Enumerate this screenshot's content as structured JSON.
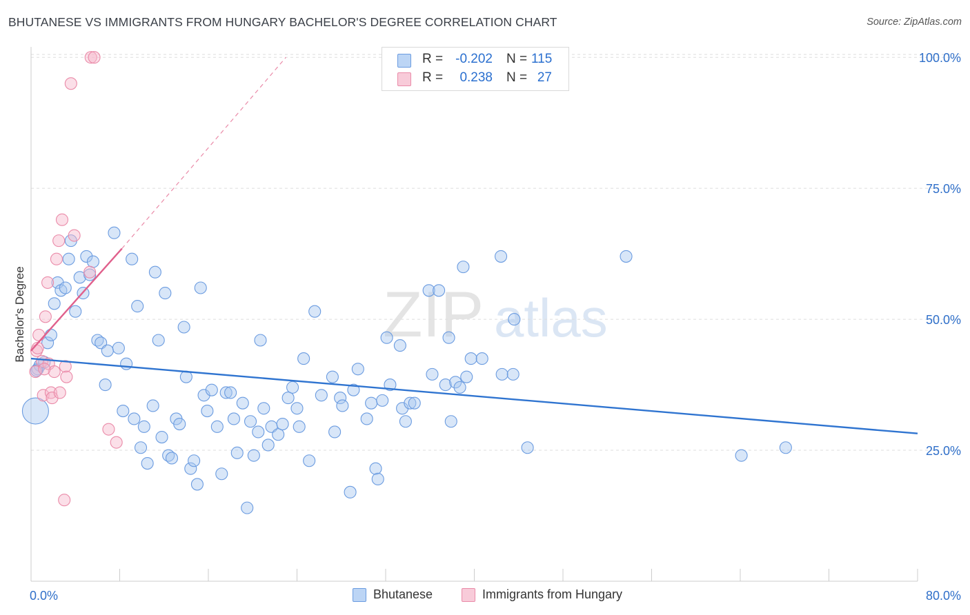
{
  "title": "BHUTANESE VS IMMIGRANTS FROM HUNGARY BACHELOR'S DEGREE CORRELATION CHART",
  "source": "Source: ZipAtlas.com",
  "watermark": {
    "zip": "ZIP",
    "atlas": "atlas"
  },
  "legend": {
    "r_label": "R =",
    "n_label": "N =",
    "rows": [
      {
        "name": "Bhutanese",
        "r": "-0.202",
        "n": "115"
      },
      {
        "name": "Immigrants from Hungary",
        "r": "0.238",
        "n": "27"
      }
    ]
  },
  "colors": {
    "blue_fill": "#a9c8f0",
    "blue_stroke": "#6a9be0",
    "blue_line": "#2f74d0",
    "pink_fill": "#f6b9cc",
    "pink_stroke": "#ea8aa8",
    "pink_line": "#e0608c",
    "axis_text": "#2f6fc9",
    "grid": "#dddddd"
  },
  "chart_data": {
    "type": "scatter",
    "title": "BHUTANESE VS IMMIGRANTS FROM HUNGARY BACHELOR'S DEGREE CORRELATION CHART",
    "xlabel": "",
    "ylabel": "Bachelor's Degree",
    "xlim": [
      0,
      80
    ],
    "ylim": [
      0,
      102
    ],
    "x_tick_labels": [
      "0.0%",
      "80.0%"
    ],
    "y_ticks": [
      25,
      50,
      75,
      100
    ],
    "y_tick_labels": [
      "25.0%",
      "50.0%",
      "75.0%",
      "100.0%"
    ],
    "grid": true,
    "series": [
      {
        "name": "Bhutanese",
        "r": -0.202,
        "n": 115,
        "trend": {
          "x": [
            0,
            80
          ],
          "y": [
            42.5,
            28.2
          ]
        },
        "points": [
          [
            0.6,
            40.5
          ],
          [
            0.8,
            41.2
          ],
          [
            1.2,
            41.8
          ],
          [
            1.5,
            45.5
          ],
          [
            1.8,
            47
          ],
          [
            2.1,
            53
          ],
          [
            2.4,
            57
          ],
          [
            2.7,
            55.5
          ],
          [
            3.1,
            56
          ],
          [
            3.4,
            61.5
          ],
          [
            3.6,
            65
          ],
          [
            4,
            51.5
          ],
          [
            4.4,
            58
          ],
          [
            4.7,
            55
          ],
          [
            5,
            62
          ],
          [
            5.3,
            58.5
          ],
          [
            5.6,
            61
          ],
          [
            6,
            46
          ],
          [
            6.3,
            45.5
          ],
          [
            6.7,
            37.5
          ],
          [
            6.9,
            44
          ],
          [
            7.5,
            66.5
          ],
          [
            7.9,
            44.5
          ],
          [
            8.3,
            32.5
          ],
          [
            8.6,
            41.5
          ],
          [
            9.1,
            61.5
          ],
          [
            9.3,
            31
          ],
          [
            9.6,
            52.5
          ],
          [
            9.9,
            25.5
          ],
          [
            10.2,
            29.5
          ],
          [
            10.5,
            22.5
          ],
          [
            11,
            33.5
          ],
          [
            11.2,
            59
          ],
          [
            11.5,
            46
          ],
          [
            11.8,
            27.5
          ],
          [
            12.1,
            55
          ],
          [
            12.4,
            24
          ],
          [
            12.7,
            23.5
          ],
          [
            13.1,
            31
          ],
          [
            13.4,
            30
          ],
          [
            13.8,
            48.5
          ],
          [
            14,
            39
          ],
          [
            14.4,
            21.5
          ],
          [
            14.7,
            23
          ],
          [
            15,
            18.5
          ],
          [
            15.3,
            56
          ],
          [
            15.6,
            35.5
          ],
          [
            15.9,
            32.5
          ],
          [
            16.3,
            36.5
          ],
          [
            16.8,
            29.5
          ],
          [
            17.2,
            20.5
          ],
          [
            17.6,
            36
          ],
          [
            18,
            36
          ],
          [
            18.3,
            31
          ],
          [
            18.6,
            24.5
          ],
          [
            19.1,
            34
          ],
          [
            19.5,
            14
          ],
          [
            19.8,
            30.5
          ],
          [
            20.1,
            24
          ],
          [
            20.5,
            28.5
          ],
          [
            20.7,
            46
          ],
          [
            21,
            33
          ],
          [
            21.4,
            26
          ],
          [
            21.7,
            29.5
          ],
          [
            22.3,
            28
          ],
          [
            22.7,
            30
          ],
          [
            23.2,
            35
          ],
          [
            23.6,
            37
          ],
          [
            24,
            33
          ],
          [
            24.2,
            29.5
          ],
          [
            24.6,
            42.5
          ],
          [
            25.1,
            23
          ],
          [
            25.6,
            51.5
          ],
          [
            26.2,
            35.5
          ],
          [
            27.2,
            39
          ],
          [
            27.4,
            28.5
          ],
          [
            27.9,
            35
          ],
          [
            28.1,
            33.5
          ],
          [
            28.8,
            17
          ],
          [
            29.1,
            36.5
          ],
          [
            29.5,
            40.5
          ],
          [
            30.3,
            31
          ],
          [
            30.7,
            34
          ],
          [
            31.1,
            21.5
          ],
          [
            31.3,
            19.5
          ],
          [
            31.7,
            34.5
          ],
          [
            32.1,
            46.5
          ],
          [
            32.4,
            37.5
          ],
          [
            33.3,
            45
          ],
          [
            33.5,
            33
          ],
          [
            33.8,
            30.5
          ],
          [
            34.2,
            34
          ],
          [
            34.6,
            34
          ],
          [
            35.9,
            55.5
          ],
          [
            36.2,
            39.5
          ],
          [
            36.8,
            55.5
          ],
          [
            37.4,
            37.5
          ],
          [
            37.7,
            46.5
          ],
          [
            37.9,
            30.5
          ],
          [
            38.3,
            38
          ],
          [
            38.7,
            37
          ],
          [
            39.3,
            39
          ],
          [
            39,
            60
          ],
          [
            39.7,
            42.5
          ],
          [
            40.7,
            42.5
          ],
          [
            42.4,
            62
          ],
          [
            42.5,
            39.5
          ],
          [
            43.6,
            50
          ],
          [
            43.5,
            39.5
          ],
          [
            44.8,
            25.5
          ],
          [
            53.7,
            62
          ],
          [
            64.1,
            24
          ],
          [
            68.1,
            25.5
          ],
          [
            0.5,
            40.2
          ],
          [
            0.4,
            32.5
          ]
        ]
      },
      {
        "name": "Immigrants from Hungary",
        "r": 0.238,
        "n": 27,
        "trend": {
          "x": [
            0,
            8.2
          ],
          "y": [
            44,
            63.5
          ]
        },
        "trend_extension": {
          "x": [
            8.2,
            23
          ],
          "y": [
            63.5,
            100
          ]
        },
        "points": [
          [
            0.4,
            40
          ],
          [
            0.5,
            44
          ],
          [
            0.7,
            47
          ],
          [
            1,
            42
          ],
          [
            1.1,
            35.5
          ],
          [
            1.3,
            50.5
          ],
          [
            1.5,
            57
          ],
          [
            1.6,
            41.5
          ],
          [
            1.8,
            36
          ],
          [
            1.9,
            35
          ],
          [
            2.1,
            40
          ],
          [
            2.3,
            61.5
          ],
          [
            2.5,
            65
          ],
          [
            2.6,
            36
          ],
          [
            2.8,
            69
          ],
          [
            3.1,
            41
          ],
          [
            3.2,
            39
          ],
          [
            3.6,
            95
          ],
          [
            3.9,
            66
          ],
          [
            5.3,
            59
          ],
          [
            5.4,
            100
          ],
          [
            5.7,
            100
          ],
          [
            7,
            29
          ],
          [
            7.7,
            26.5
          ],
          [
            3,
            15.5
          ],
          [
            0.6,
            44.5
          ],
          [
            1.2,
            40.5
          ]
        ]
      }
    ]
  }
}
